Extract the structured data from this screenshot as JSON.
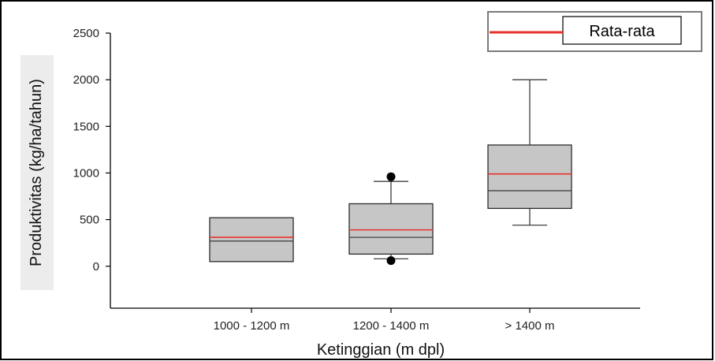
{
  "chart_data": {
    "type": "box",
    "xlabel": "Ketinggian (m dpl)",
    "ylabel": "Produktivitas (kg/ha/tahun)",
    "ylim": [
      -450,
      2500
    ],
    "yticks": [
      0,
      500,
      1000,
      1500,
      2000,
      2500
    ],
    "grid": false,
    "legend": {
      "position": "top-right",
      "entries": [
        {
          "label": "Rata-rata",
          "color": "#e8322c"
        }
      ]
    },
    "categories": [
      "1000 - 1200 m",
      "1200 - 1400 m",
      "> 1400 m"
    ],
    "boxes": [
      {
        "category": "1000 - 1200 m",
        "q1": 50,
        "median": 270,
        "q3": 520,
        "mean": 310,
        "whisker_low": null,
        "whisker_high": null,
        "outliers": []
      },
      {
        "category": "1200 - 1400 m",
        "q1": 130,
        "median": 310,
        "q3": 670,
        "mean": 390,
        "whisker_low": 80,
        "whisker_high": 910,
        "outliers": [
          60,
          960
        ]
      },
      {
        "category": "> 1400 m",
        "q1": 620,
        "median": 810,
        "q3": 1300,
        "mean": 990,
        "whisker_low": 440,
        "whisker_high": 2000,
        "outliers": []
      }
    ],
    "colors": {
      "box_fill": "#c6c6c6",
      "box_stroke": "#2b2b2b",
      "median": "#444444",
      "mean": "#e8322c"
    }
  }
}
